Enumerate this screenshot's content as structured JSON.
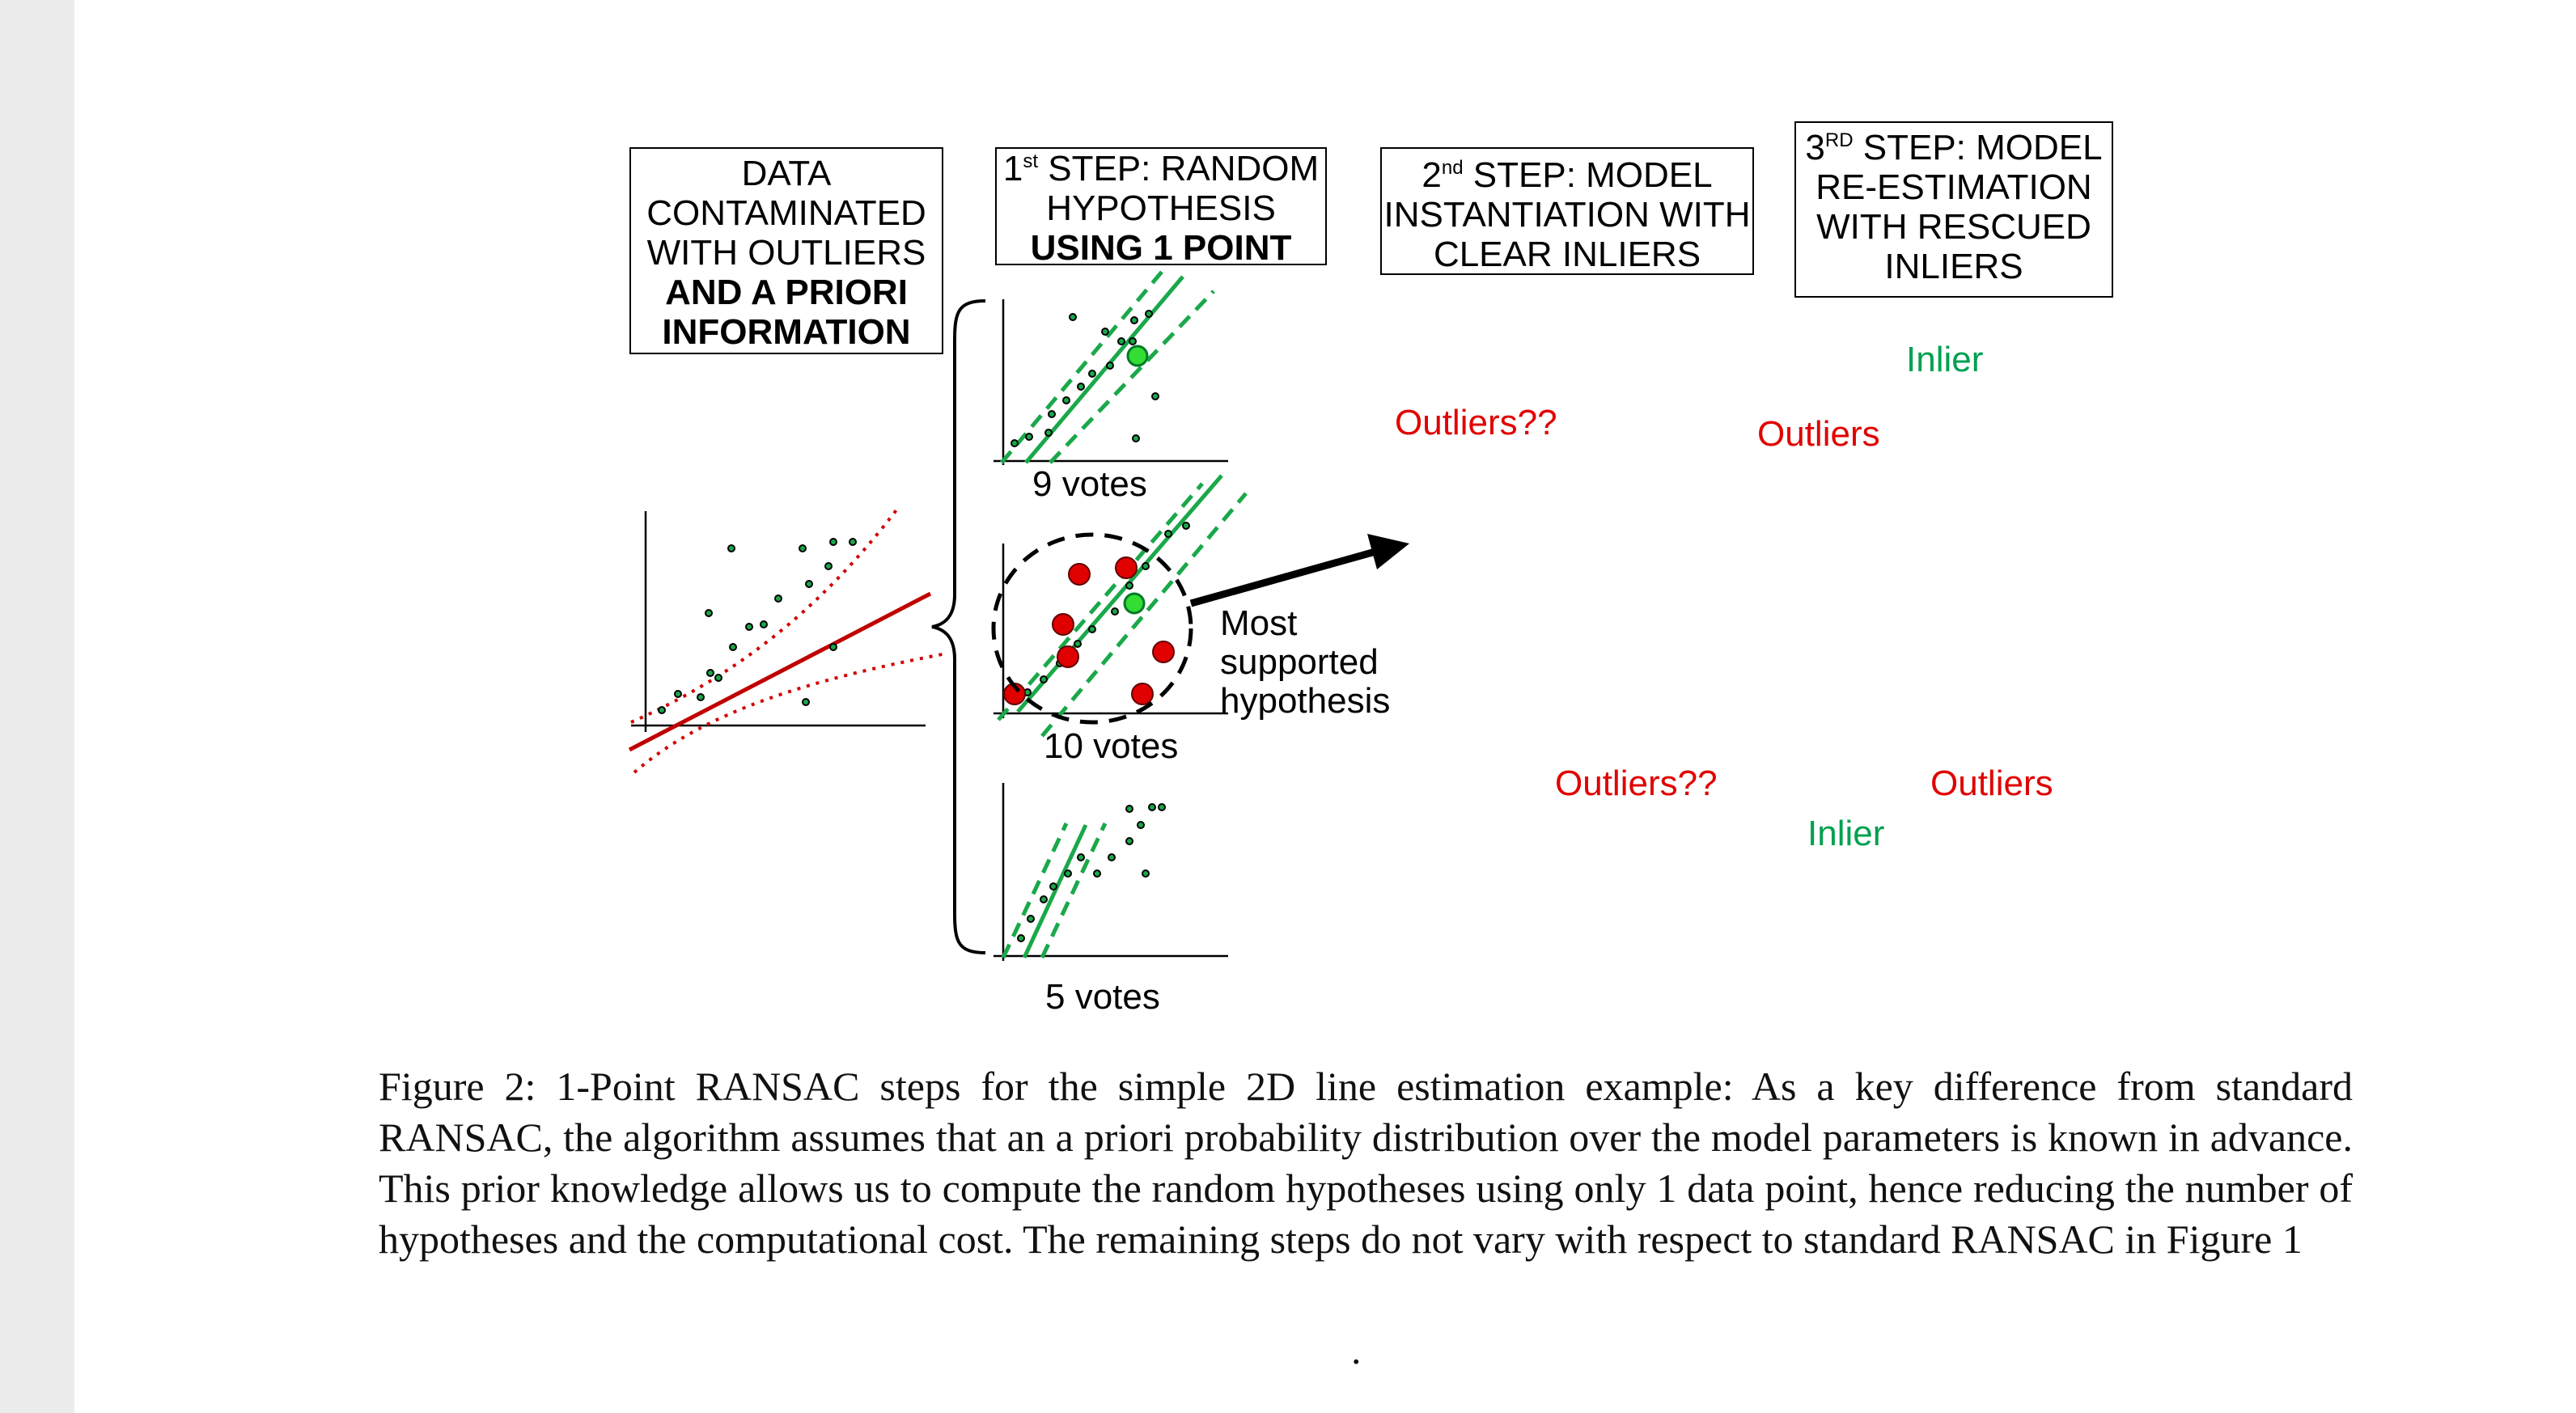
{
  "figure": {
    "panels": {
      "data": {
        "lines": [
          "DATA",
          "CONTAMINATED",
          "WITH OUTLIERS"
        ],
        "bold_lines": [
          "AND A PRIORI",
          "INFORMATION"
        ]
      },
      "step1": {
        "sup": "st",
        "lead": "1",
        "line1_rest": " STEP: RANDOM",
        "line2": "HYPOTHESIS",
        "bold_line": "USING 1 POINT"
      },
      "step2": {
        "lead": "2",
        "sup": "nd",
        "line1_rest": " STEP: MODEL",
        "line2": "INSTANTIATION WITH",
        "line3": "CLEAR INLIERS"
      },
      "step3": {
        "lead": "3",
        "sup": "RD",
        "line1_rest": " STEP: MODEL",
        "line2": "RE-ESTIMATION",
        "line3": "WITH RESCUED",
        "line4": "INLIERS"
      }
    },
    "votes": [
      "9 votes",
      "10 votes",
      "5 votes"
    ],
    "most_supported": [
      "Most",
      "supported",
      "hypothesis"
    ],
    "step2_annotations": {
      "outliers_top": "Outliers??",
      "outliers_bottom": "Outliers??"
    },
    "step3_annotations": {
      "inlier_top": "Inlier",
      "outliers_top": "Outliers",
      "outliers_bottom": "Outliers",
      "inlier_bottom": "Inlier"
    },
    "colors": {
      "inlier_green": "#00a050",
      "outlier_red": "#e00000",
      "model_blue": "#0000e0",
      "dotted_blue": "#3a6fe0",
      "prior_red": "#c00000",
      "hypothesis_green": "#1aa84a"
    }
  },
  "caption": {
    "text": "Figure 2: 1-Point RANSAC steps for the simple 2D line estimation example: As a key difference from standard RANSAC, the algorithm assumes that an a priori probability distribution over the model parameters is known in advance. This prior knowledge allows us to compute the random hypotheses using only 1 data point, hence reducing the number of hypotheses and the computational cost. The remaining steps do not vary with respect to standard RANSAC in Figure 1"
  },
  "trailing_mark": "."
}
